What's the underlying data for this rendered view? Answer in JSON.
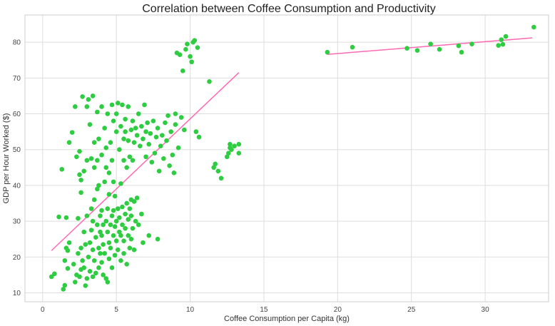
{
  "chart_data": {
    "type": "scatter",
    "title": "Correlation between Coffee Consumption and Productivity",
    "xlabel": "Coffee Consumption per Capita (kg)",
    "ylabel": "GDP per Hour Worked ($)",
    "xlim": [
      -1.2,
      34.3
    ],
    "ylim": [
      7.5,
      87.6
    ],
    "xticks": [
      0,
      5,
      10,
      15,
      20,
      25,
      30
    ],
    "yticks": [
      10,
      20,
      30,
      40,
      50,
      60,
      70,
      80
    ],
    "grid": true,
    "colors": {
      "points": "#2ecc40",
      "trend": "#ff69b4"
    },
    "trendlines": [
      {
        "x": [
          0.6,
          13.3
        ],
        "y": [
          21.8,
          71.5
        ]
      },
      {
        "x": [
          19.3,
          33.2
        ],
        "y": [
          76.6,
          81.2
        ]
      }
    ],
    "points": [
      [
        0.6,
        14.5
      ],
      [
        0.8,
        15.3
      ],
      [
        1.1,
        31.2
      ],
      [
        1.3,
        44.5
      ],
      [
        1.4,
        11.0
      ],
      [
        1.5,
        12.1
      ],
      [
        1.5,
        19.0
      ],
      [
        1.6,
        22.5
      ],
      [
        1.6,
        31.0
      ],
      [
        1.7,
        16.8
      ],
      [
        1.7,
        21.8
      ],
      [
        1.8,
        24.0
      ],
      [
        1.8,
        52.0
      ],
      [
        2.0,
        54.8
      ],
      [
        2.1,
        18.0
      ],
      [
        2.2,
        13.0
      ],
      [
        2.2,
        62.0
      ],
      [
        2.3,
        15.0
      ],
      [
        2.3,
        48.0
      ],
      [
        2.4,
        30.8
      ],
      [
        2.4,
        21.0
      ],
      [
        2.5,
        14.5
      ],
      [
        2.5,
        43.0
      ],
      [
        2.5,
        49.5
      ],
      [
        2.6,
        16.5
      ],
      [
        2.6,
        22.5
      ],
      [
        2.6,
        38.0
      ],
      [
        2.6,
        41.5
      ],
      [
        2.7,
        64.8
      ],
      [
        2.7,
        19.0
      ],
      [
        2.8,
        44.0
      ],
      [
        2.8,
        17.0
      ],
      [
        2.8,
        27.0
      ],
      [
        2.9,
        12.0
      ],
      [
        2.9,
        23.5
      ],
      [
        3.0,
        62.0
      ],
      [
        3.0,
        14.0
      ],
      [
        3.0,
        47.0
      ],
      [
        3.0,
        31.5
      ],
      [
        3.1,
        64.0
      ],
      [
        3.1,
        20.0
      ],
      [
        3.2,
        24.0
      ],
      [
        3.2,
        16.0
      ],
      [
        3.2,
        57.0
      ],
      [
        3.3,
        33.5
      ],
      [
        3.3,
        27.5
      ],
      [
        3.3,
        47.5
      ],
      [
        3.4,
        65.0
      ],
      [
        3.4,
        14.5
      ],
      [
        3.4,
        22.0
      ],
      [
        3.4,
        30.0
      ],
      [
        3.5,
        19.0
      ],
      [
        3.5,
        36.0
      ],
      [
        3.5,
        45.0
      ],
      [
        3.5,
        52.0
      ],
      [
        3.6,
        15.5
      ],
      [
        3.6,
        25.5
      ],
      [
        3.7,
        29.0
      ],
      [
        3.7,
        39.0
      ],
      [
        3.7,
        60.5
      ],
      [
        3.7,
        47.0
      ],
      [
        3.8,
        22.5
      ],
      [
        3.8,
        17.0
      ],
      [
        3.8,
        53.0
      ],
      [
        3.8,
        40.0
      ],
      [
        3.9,
        27.0
      ],
      [
        3.9,
        31.5
      ],
      [
        3.9,
        21.0
      ],
      [
        4.0,
        62.0
      ],
      [
        4.0,
        18.5
      ],
      [
        4.0,
        26.0
      ],
      [
        4.0,
        33.0
      ],
      [
        4.0,
        48.5
      ],
      [
        4.1,
        15.0
      ],
      [
        4.1,
        23.5
      ],
      [
        4.1,
        29.0
      ],
      [
        4.2,
        21.0
      ],
      [
        4.2,
        41.0
      ],
      [
        4.2,
        56.0
      ],
      [
        4.3,
        14.0
      ],
      [
        4.3,
        30.0
      ],
      [
        4.3,
        45.0
      ],
      [
        4.3,
        50.5
      ],
      [
        4.4,
        13.0
      ],
      [
        4.4,
        27.0
      ],
      [
        4.4,
        33.5
      ],
      [
        4.4,
        60.0
      ],
      [
        4.5,
        19.5
      ],
      [
        4.5,
        24.0
      ],
      [
        4.5,
        37.5
      ],
      [
        4.5,
        43.5
      ],
      [
        4.6,
        29.0
      ],
      [
        4.6,
        22.5
      ],
      [
        4.6,
        52.0
      ],
      [
        4.7,
        17.0
      ],
      [
        4.7,
        31.5
      ],
      [
        4.7,
        47.0
      ],
      [
        4.7,
        62.5
      ],
      [
        4.8,
        26.0
      ],
      [
        4.8,
        33.0
      ],
      [
        4.8,
        41.0
      ],
      [
        4.8,
        58.0
      ],
      [
        4.9,
        20.5
      ],
      [
        4.9,
        28.5
      ],
      [
        4.9,
        37.0
      ],
      [
        5.0,
        24.5
      ],
      [
        5.0,
        30.0
      ],
      [
        5.0,
        55.0
      ],
      [
        5.0,
        60.0
      ],
      [
        5.1,
        22.0
      ],
      [
        5.1,
        33.5
      ],
      [
        5.1,
        63.0
      ],
      [
        5.2,
        27.0
      ],
      [
        5.2,
        31.0
      ],
      [
        5.2,
        50.0
      ],
      [
        5.3,
        19.0
      ],
      [
        5.3,
        26.0
      ],
      [
        5.3,
        40.5
      ],
      [
        5.3,
        56.5
      ],
      [
        5.4,
        29.0
      ],
      [
        5.4,
        34.0
      ],
      [
        5.4,
        62.5
      ],
      [
        5.5,
        21.0
      ],
      [
        5.5,
        24.5
      ],
      [
        5.5,
        47.0
      ],
      [
        5.5,
        53.0
      ],
      [
        5.6,
        28.0
      ],
      [
        5.6,
        32.0
      ],
      [
        5.6,
        55.0
      ],
      [
        5.6,
        58.5
      ],
      [
        5.7,
        18.0
      ],
      [
        5.7,
        35.0
      ],
      [
        5.7,
        45.0
      ],
      [
        5.8,
        26.0
      ],
      [
        5.8,
        30.5
      ],
      [
        5.8,
        52.5
      ],
      [
        5.8,
        62.0
      ],
      [
        5.9,
        22.5
      ],
      [
        5.9,
        33.5
      ],
      [
        5.9,
        48.0
      ],
      [
        6.0,
        25.0
      ],
      [
        6.0,
        31.5
      ],
      [
        6.0,
        36.0
      ],
      [
        6.0,
        55.5
      ],
      [
        6.1,
        28.0
      ],
      [
        6.1,
        47.0
      ],
      [
        6.1,
        58.0
      ],
      [
        6.2,
        35.5
      ],
      [
        6.2,
        22.0
      ],
      [
        6.2,
        52.0
      ],
      [
        6.3,
        30.0
      ],
      [
        6.3,
        56.0
      ],
      [
        6.4,
        36.5
      ],
      [
        6.4,
        54.0
      ],
      [
        6.5,
        29.0
      ],
      [
        6.5,
        60.0
      ],
      [
        6.6,
        51.0
      ],
      [
        6.7,
        32.0
      ],
      [
        6.7,
        56.5
      ],
      [
        6.8,
        24.0
      ],
      [
        6.8,
        53.0
      ],
      [
        6.9,
        62.5
      ],
      [
        7.0,
        55.0
      ],
      [
        7.0,
        48.0
      ],
      [
        7.1,
        57.5
      ],
      [
        7.2,
        26.0
      ],
      [
        7.2,
        51.5
      ],
      [
        7.3,
        54.5
      ],
      [
        7.4,
        46.5
      ],
      [
        7.5,
        58.0
      ],
      [
        7.6,
        49.0
      ],
      [
        7.7,
        53.5
      ],
      [
        7.8,
        25.0
      ],
      [
        7.8,
        56.0
      ],
      [
        7.9,
        44.0
      ],
      [
        8.0,
        51.0
      ],
      [
        8.1,
        54.0
      ],
      [
        8.2,
        47.5
      ],
      [
        8.3,
        57.5
      ],
      [
        8.4,
        52.5
      ],
      [
        8.5,
        59.5
      ],
      [
        8.6,
        45.5
      ],
      [
        8.7,
        55.0
      ],
      [
        8.8,
        48.5
      ],
      [
        8.9,
        43.5
      ],
      [
        9.0,
        57.0
      ],
      [
        9.0,
        60.0
      ],
      [
        9.1,
        77.0
      ],
      [
        9.2,
        50.5
      ],
      [
        9.3,
        76.5
      ],
      [
        9.4,
        59.0
      ],
      [
        9.5,
        72.0
      ],
      [
        9.6,
        55.5
      ],
      [
        9.7,
        78.0
      ],
      [
        9.8,
        79.5
      ],
      [
        10.0,
        76.0
      ],
      [
        10.1,
        74.5
      ],
      [
        10.2,
        80.0
      ],
      [
        10.3,
        80.5
      ],
      [
        10.4,
        55.0
      ],
      [
        10.5,
        78.5
      ],
      [
        10.6,
        53.5
      ],
      [
        11.3,
        69.0
      ],
      [
        11.6,
        45.0
      ],
      [
        11.7,
        46.0
      ],
      [
        11.9,
        44.0
      ],
      [
        12.1,
        42.0
      ],
      [
        12.5,
        48.0
      ],
      [
        12.6,
        49.0
      ],
      [
        12.7,
        50.5
      ],
      [
        12.7,
        51.5
      ],
      [
        12.8,
        50.0
      ],
      [
        13.0,
        51.0
      ],
      [
        13.3,
        51.5
      ],
      [
        13.3,
        49.0
      ],
      [
        19.3,
        77.2
      ],
      [
        21.0,
        78.6
      ],
      [
        24.7,
        78.3
      ],
      [
        25.4,
        77.7
      ],
      [
        26.3,
        79.5
      ],
      [
        26.9,
        78.0
      ],
      [
        28.2,
        79.0
      ],
      [
        28.4,
        77.2
      ],
      [
        29.1,
        79.5
      ],
      [
        30.9,
        79.1
      ],
      [
        31.1,
        80.7
      ],
      [
        31.2,
        79.4
      ],
      [
        31.4,
        81.6
      ],
      [
        33.3,
        84.2
      ]
    ]
  }
}
